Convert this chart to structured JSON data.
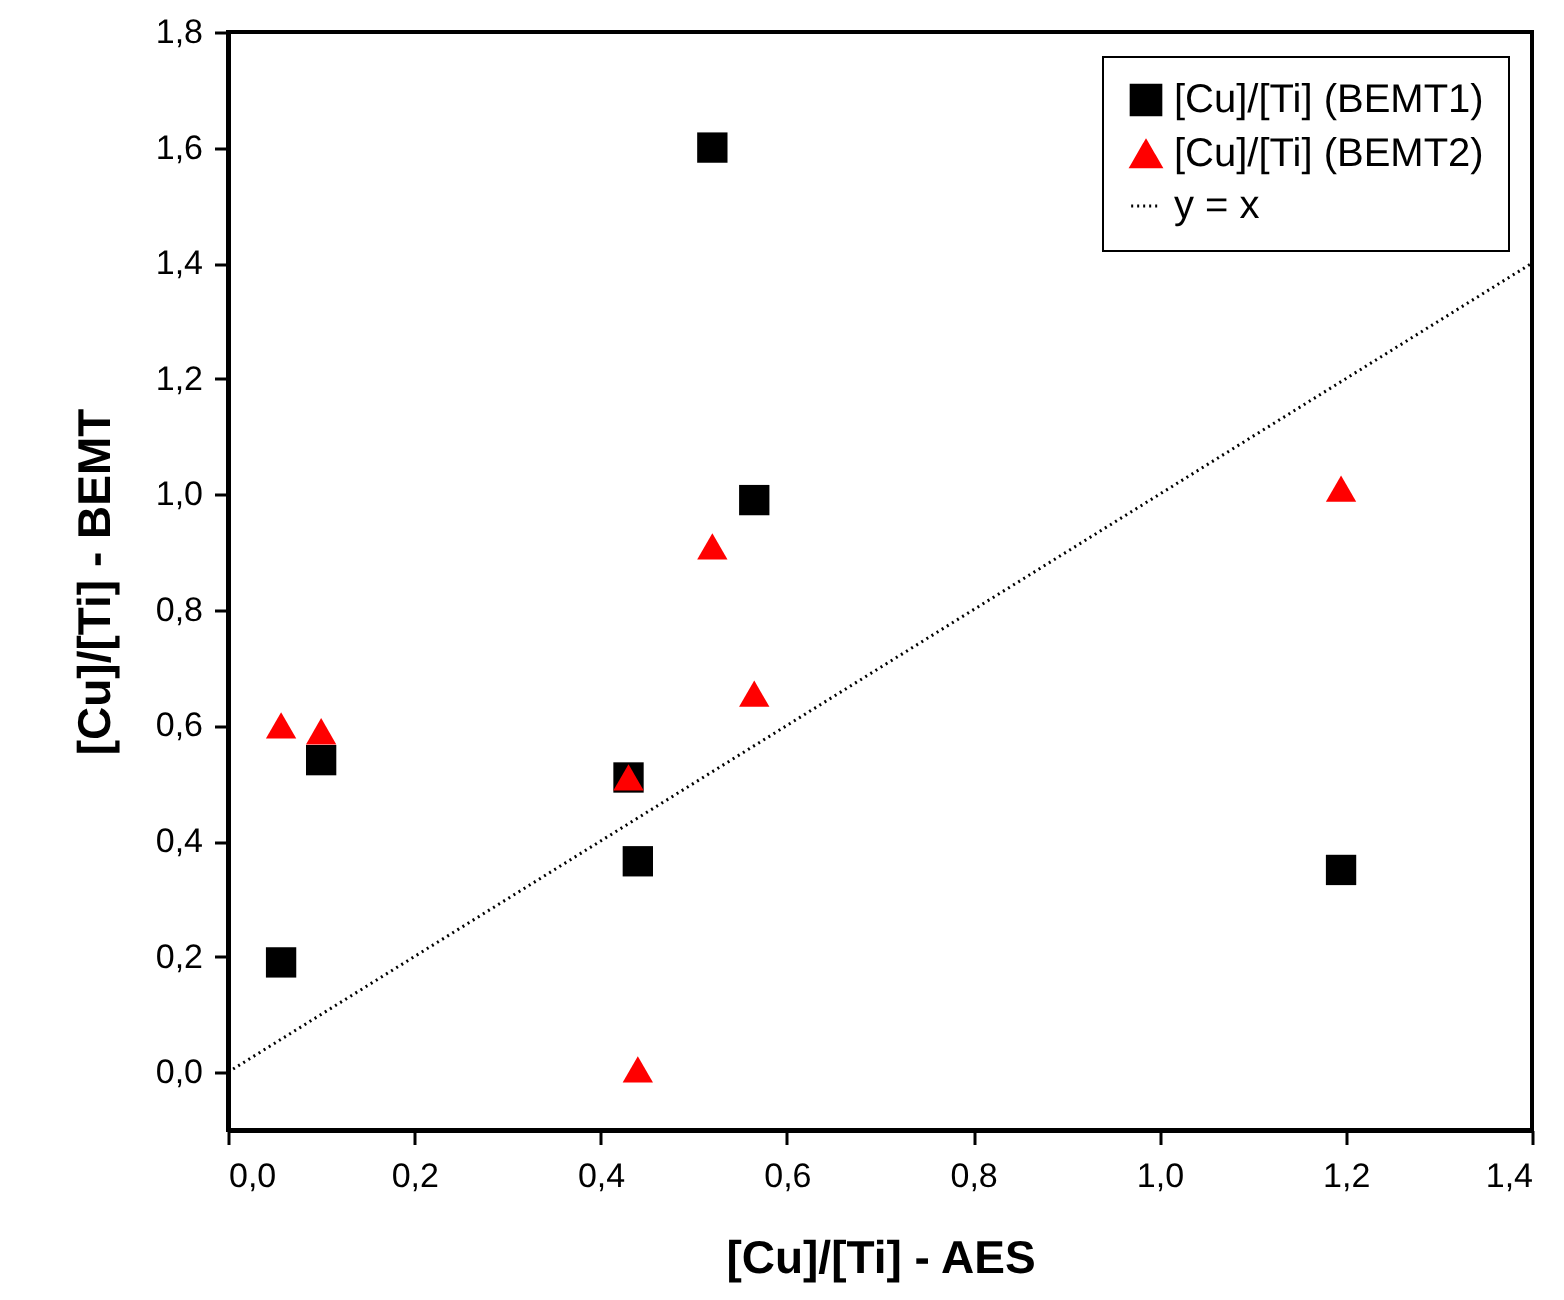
{
  "chart_data": {
    "type": "scatter",
    "xlabel": "[Cu]/[Ti] - AES",
    "ylabel": "[Cu]/[Ti] - BEMT",
    "x": [
      0.057,
      0.1,
      0.43,
      0.44,
      0.52,
      0.565,
      1.195
    ],
    "series": [
      {
        "name": "[Cu]/[Ti] (BEMT1)",
        "color": "#000000",
        "marker": "square",
        "values": [
          0.19,
          0.54,
          0.51,
          0.365,
          1.6,
          0.99,
          0.35
        ]
      },
      {
        "name": "[Cu]/[Ti] (BEMT2)",
        "color": "#ff0000",
        "marker": "triangle",
        "values": [
          0.6,
          0.59,
          0.51,
          0.005,
          0.91,
          0.655,
          1.01
        ]
      },
      {
        "name": "y = x",
        "type": "line",
        "color": "#000000",
        "line_style": "dotted",
        "x": [
          0,
          1.4
        ],
        "values": [
          0,
          1.4
        ]
      }
    ],
    "xlim": [
      0,
      1.4
    ],
    "ylim": [
      -0.1,
      1.8
    ],
    "xticks": [
      {
        "value": 0,
        "label": "0,0"
      },
      {
        "value": 0.2,
        "label": "0,2"
      },
      {
        "value": 0.4,
        "label": "0,4"
      },
      {
        "value": 0.6,
        "label": "0,6"
      },
      {
        "value": 0.8,
        "label": "0,8"
      },
      {
        "value": 1.0,
        "label": "1,0"
      },
      {
        "value": 1.2,
        "label": "1,2"
      },
      {
        "value": 1.4,
        "label": "1,4"
      }
    ],
    "yticks": [
      {
        "value": 0,
        "label": "0,0"
      },
      {
        "value": 0.2,
        "label": "0,2"
      },
      {
        "value": 0.4,
        "label": "0,4"
      },
      {
        "value": 0.6,
        "label": "0,6"
      },
      {
        "value": 0.8,
        "label": "0,8"
      },
      {
        "value": 1.0,
        "label": "1,0"
      },
      {
        "value": 1.2,
        "label": "1,2"
      },
      {
        "value": 1.4,
        "label": "1,4"
      },
      {
        "value": 1.6,
        "label": "1,6"
      },
      {
        "value": 1.8,
        "label": "1,8"
      }
    ],
    "legend": "top right",
    "grid": false
  }
}
